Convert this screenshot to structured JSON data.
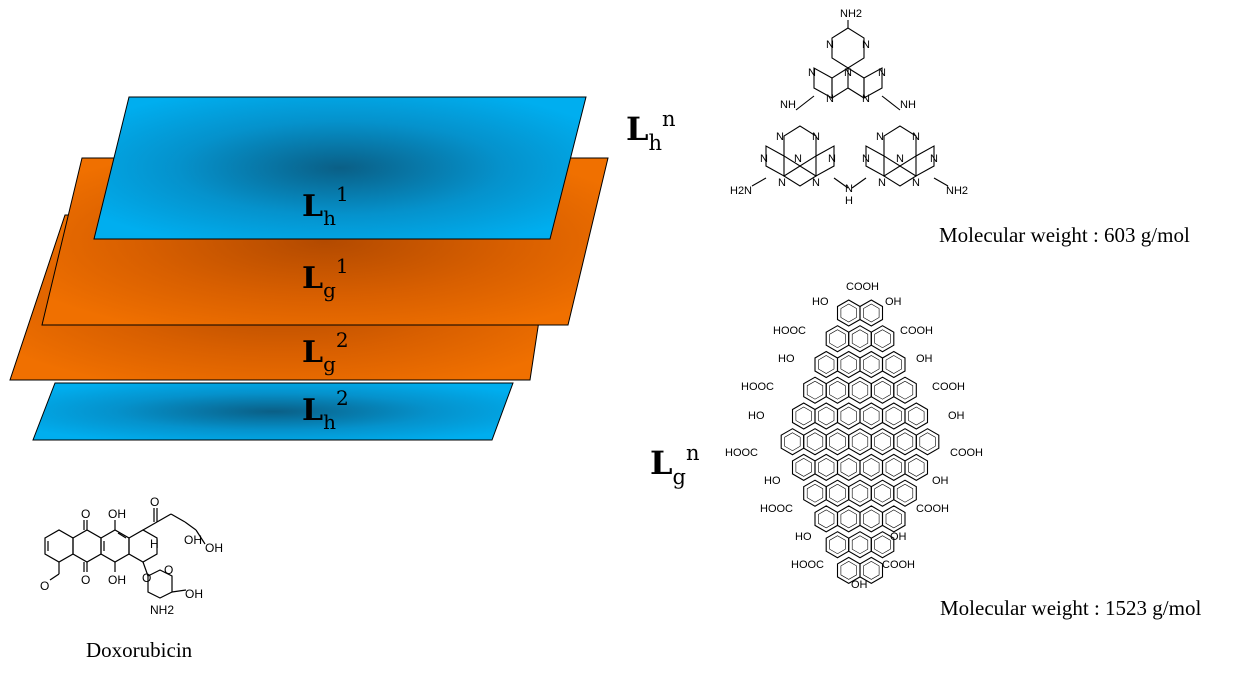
{
  "layers": {
    "top_label": {
      "main": "L",
      "sub": "h",
      "sup": "n"
    },
    "sheet1": {
      "main": "L",
      "sub": "h",
      "sup": "1"
    },
    "sheet2": {
      "main": "L",
      "sub": "g",
      "sup": "1"
    },
    "sheet3": {
      "main": "L",
      "sub": "g",
      "sup": "2"
    },
    "sheet4": {
      "main": "L",
      "sub": "h",
      "sup": "2"
    },
    "right_label": {
      "main": "L",
      "sub": "g",
      "sup": "n"
    }
  },
  "heptazine": {
    "atoms": {
      "n": "N",
      "nh": "NH",
      "h": "H",
      "nh2": "NH2",
      "h2n": "H2N"
    },
    "mw": "Molecular weight : 603 g/mol"
  },
  "graphene_oxide": {
    "groups": {
      "cooh": "COOH",
      "hooc": "HOOC",
      "oh": "OH",
      "ho": "HO"
    },
    "mw": "Molecular weight : 1523 g/mol"
  },
  "doxorubicin": {
    "atoms": {
      "o": "O",
      "oh": "OH",
      "h": "H",
      "nh2": "NH2"
    },
    "name": "Doxorubicin"
  },
  "colors": {
    "blue": "#00aeef",
    "blue_dark": "#0a5f86",
    "orange": "#f07000",
    "orange_dark": "#b34a00"
  }
}
